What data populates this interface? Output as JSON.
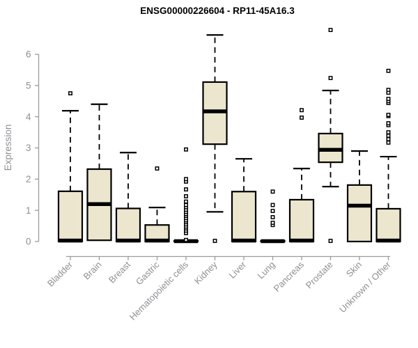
{
  "chart_data": {
    "type": "boxplot",
    "title": "ENSG00000226604 - RP11-45A16.3",
    "ylabel": "Expression",
    "xlabel": "",
    "ylim": [
      0,
      6.8
    ],
    "yticks": [
      0,
      1,
      2,
      3,
      4,
      5,
      6
    ],
    "grid": false,
    "legend": false,
    "categories": [
      "Bladder",
      "Brain",
      "Breast",
      "Gastric",
      "Hematopoietic cells",
      "Kidney",
      "Liver",
      "Lung",
      "Pancreas",
      "Prostate",
      "Skin",
      "Unknown / Other"
    ],
    "boxes": [
      {
        "category": "Bladder",
        "q1": 0,
        "median": 0.03,
        "q3": 1.61,
        "whisker_low": 0,
        "whisker_high": 4.19,
        "outliers": [
          4.75
        ]
      },
      {
        "category": "Brain",
        "q1": 0.04,
        "median": 1.2,
        "q3": 2.32,
        "whisker_low": 0.04,
        "whisker_high": 4.4,
        "outliers": []
      },
      {
        "category": "Breast",
        "q1": 0,
        "median": 0.03,
        "q3": 1.06,
        "whisker_low": 0,
        "whisker_high": 2.85,
        "outliers": []
      },
      {
        "category": "Gastric",
        "q1": 0,
        "median": 0.03,
        "q3": 0.53,
        "whisker_low": 0,
        "whisker_high": 1.09,
        "outliers": [
          2.34
        ]
      },
      {
        "category": "Hematopoietic cells",
        "q1": 0,
        "median": 0.01,
        "q3": 0.02,
        "whisker_low": 0,
        "whisker_high": 0.02,
        "outliers": [
          0.05,
          0.27,
          0.35,
          0.42,
          0.48,
          0.55,
          0.62,
          0.68,
          0.75,
          0.82,
          0.88,
          0.95,
          1.02,
          1.1,
          1.17,
          1.28,
          1.45,
          1.67,
          1.92,
          2.0,
          2.95
        ]
      },
      {
        "category": "Kidney",
        "q1": 3.12,
        "median": 4.17,
        "q3": 5.11,
        "whisker_low": 0.95,
        "whisker_high": 6.62,
        "outliers": [
          0.02
        ]
      },
      {
        "category": "Liver",
        "q1": 0,
        "median": 0.03,
        "q3": 1.6,
        "whisker_low": 0,
        "whisker_high": 2.65,
        "outliers": []
      },
      {
        "category": "Lung",
        "q1": 0,
        "median": 0.01,
        "q3": 0.02,
        "whisker_low": 0,
        "whisker_high": 0.02,
        "outliers": [
          0.53,
          0.6,
          0.78,
          0.98,
          1.17,
          1.6
        ]
      },
      {
        "category": "Pancreas",
        "q1": 0,
        "median": 0.03,
        "q3": 1.34,
        "whisker_low": 0,
        "whisker_high": 2.34,
        "outliers": [
          3.97,
          4.21
        ]
      },
      {
        "category": "Prostate",
        "q1": 2.54,
        "median": 2.94,
        "q3": 3.46,
        "whisker_low": 1.76,
        "whisker_high": 4.84,
        "outliers": [
          0.02,
          5.24,
          6.78
        ]
      },
      {
        "category": "Skin",
        "q1": 0,
        "median": 1.15,
        "q3": 1.81,
        "whisker_low": 0,
        "whisker_high": 2.9,
        "outliers": []
      },
      {
        "category": "Unknown / Other",
        "q1": 0,
        "median": 0.03,
        "q3": 1.05,
        "whisker_low": 0,
        "whisker_high": 2.72,
        "outliers": [
          3.17,
          3.28,
          3.39,
          3.5,
          3.73,
          3.79,
          4.02,
          4.06,
          4.44,
          4.5,
          4.57,
          4.77,
          4.86,
          5.47
        ]
      }
    ],
    "colors": {
      "box_fill": "#ece6ce",
      "box_stroke": "#000000",
      "axis": "#9b9b9b",
      "tick_text": "#8f8f94",
      "label_text": "#8f8f94",
      "title_text": "#000000"
    }
  }
}
